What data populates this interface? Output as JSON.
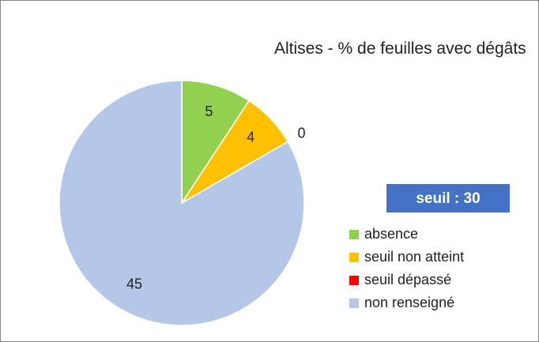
{
  "chart_data": {
    "type": "pie",
    "title": "Altises - % de feuilles avec dégâts",
    "categories": [
      "absence",
      "seuil non atteint",
      "seuil dépassé",
      "non renseigné"
    ],
    "values": [
      5,
      4,
      0,
      45
    ],
    "colors": [
      "#92d050",
      "#ffc000",
      "#ff0000",
      "#b4c7e7"
    ],
    "annotation": "seuil : 30",
    "legend": "right"
  }
}
